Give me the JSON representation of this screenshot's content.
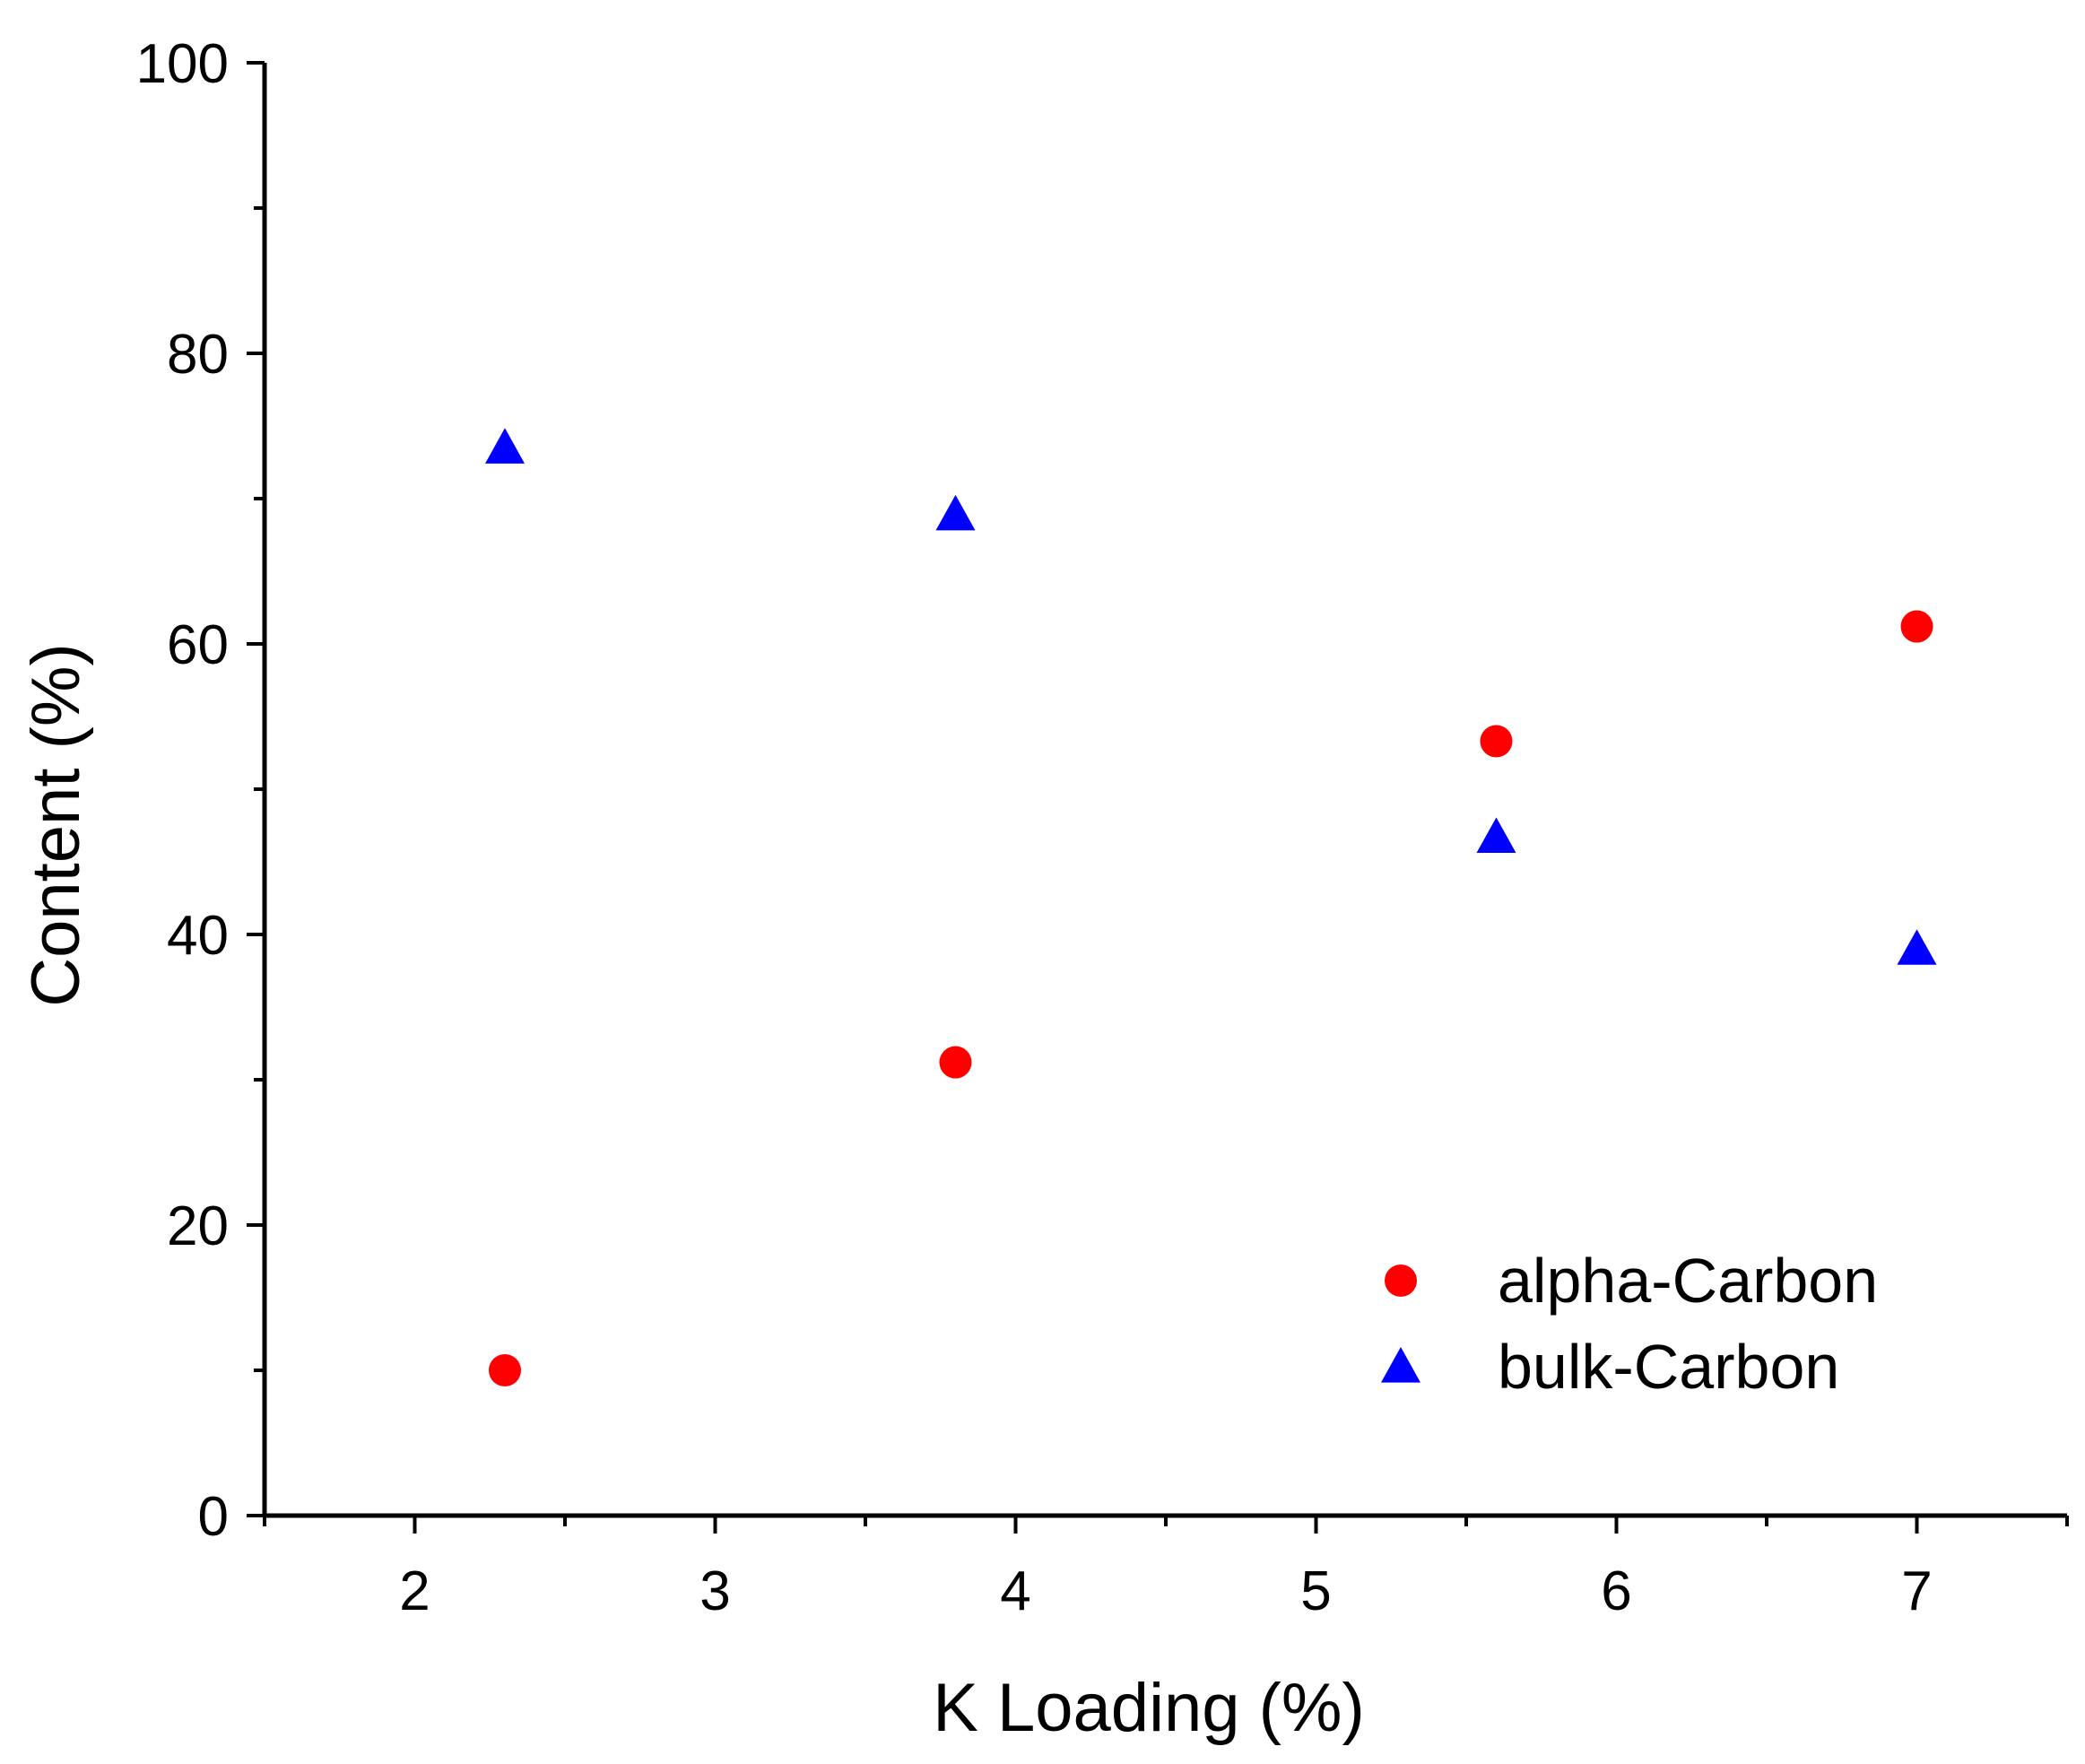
{
  "chart_data": {
    "type": "scatter",
    "title": "",
    "xlabel": "K Loading (%)",
    "ylabel": "Content (%)",
    "xlim": [
      1.5,
      7.5
    ],
    "ylim": [
      0,
      100
    ],
    "x_ticks": [
      2,
      3,
      4,
      5,
      6,
      7
    ],
    "y_ticks": [
      0,
      20,
      40,
      60,
      80,
      100
    ],
    "grid": false,
    "legend_position": "bottom-right",
    "series": [
      {
        "name": "alpha-Carbon",
        "marker": "circle",
        "color": "#ff0000",
        "points": [
          {
            "x": 2.3,
            "y": 10
          },
          {
            "x": 3.8,
            "y": 31.2
          },
          {
            "x": 5.6,
            "y": 53.3
          },
          {
            "x": 7.0,
            "y": 61.2
          }
        ]
      },
      {
        "name": "bulk-Carbon",
        "marker": "triangle",
        "color": "#0000ff",
        "points": [
          {
            "x": 2.3,
            "y": 73.5
          },
          {
            "x": 3.8,
            "y": 68.9
          },
          {
            "x": 5.6,
            "y": 46.7
          },
          {
            "x": 7.0,
            "y": 39.0
          }
        ]
      }
    ]
  }
}
